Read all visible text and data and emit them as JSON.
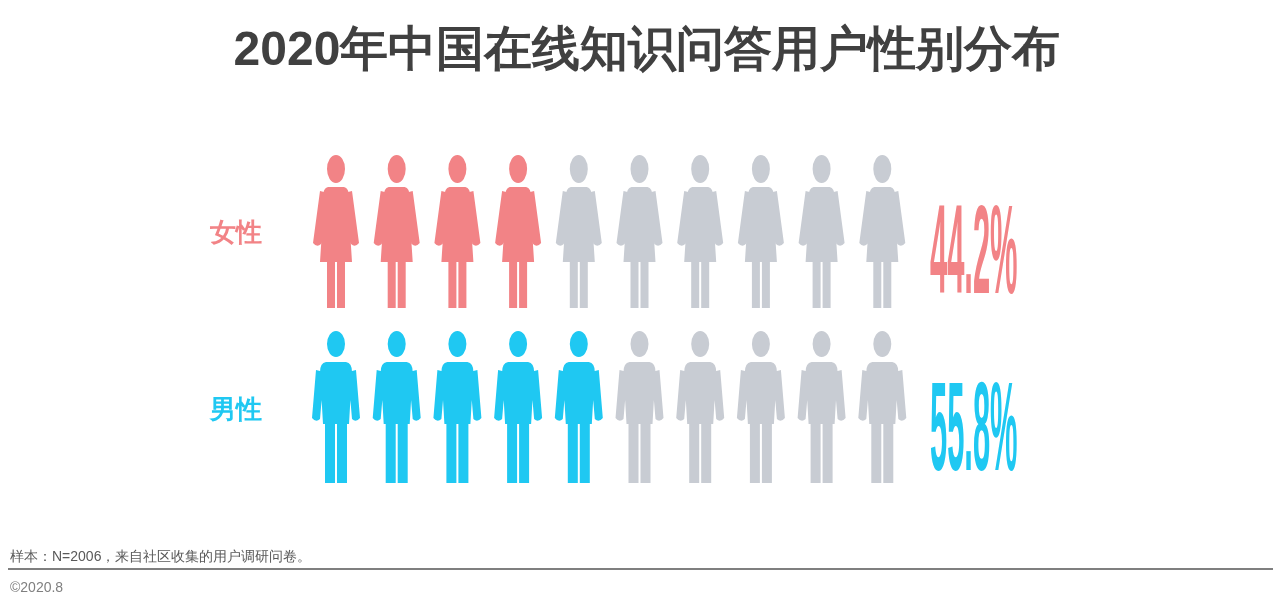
{
  "chart_data": {
    "type": "other",
    "title": "2020年中国在线知识问答用户性别分布",
    "categories": [
      "女性",
      "男性"
    ],
    "values": [
      44.2,
      55.8
    ],
    "value_labels": [
      "44.2%",
      "55.8%"
    ],
    "colors": [
      "#f28386",
      "#1fc8f2"
    ],
    "annotations": [
      "样本：N=2006，来自社区收集的用户调研问卷。",
      "©2020.8"
    ]
  }
}
